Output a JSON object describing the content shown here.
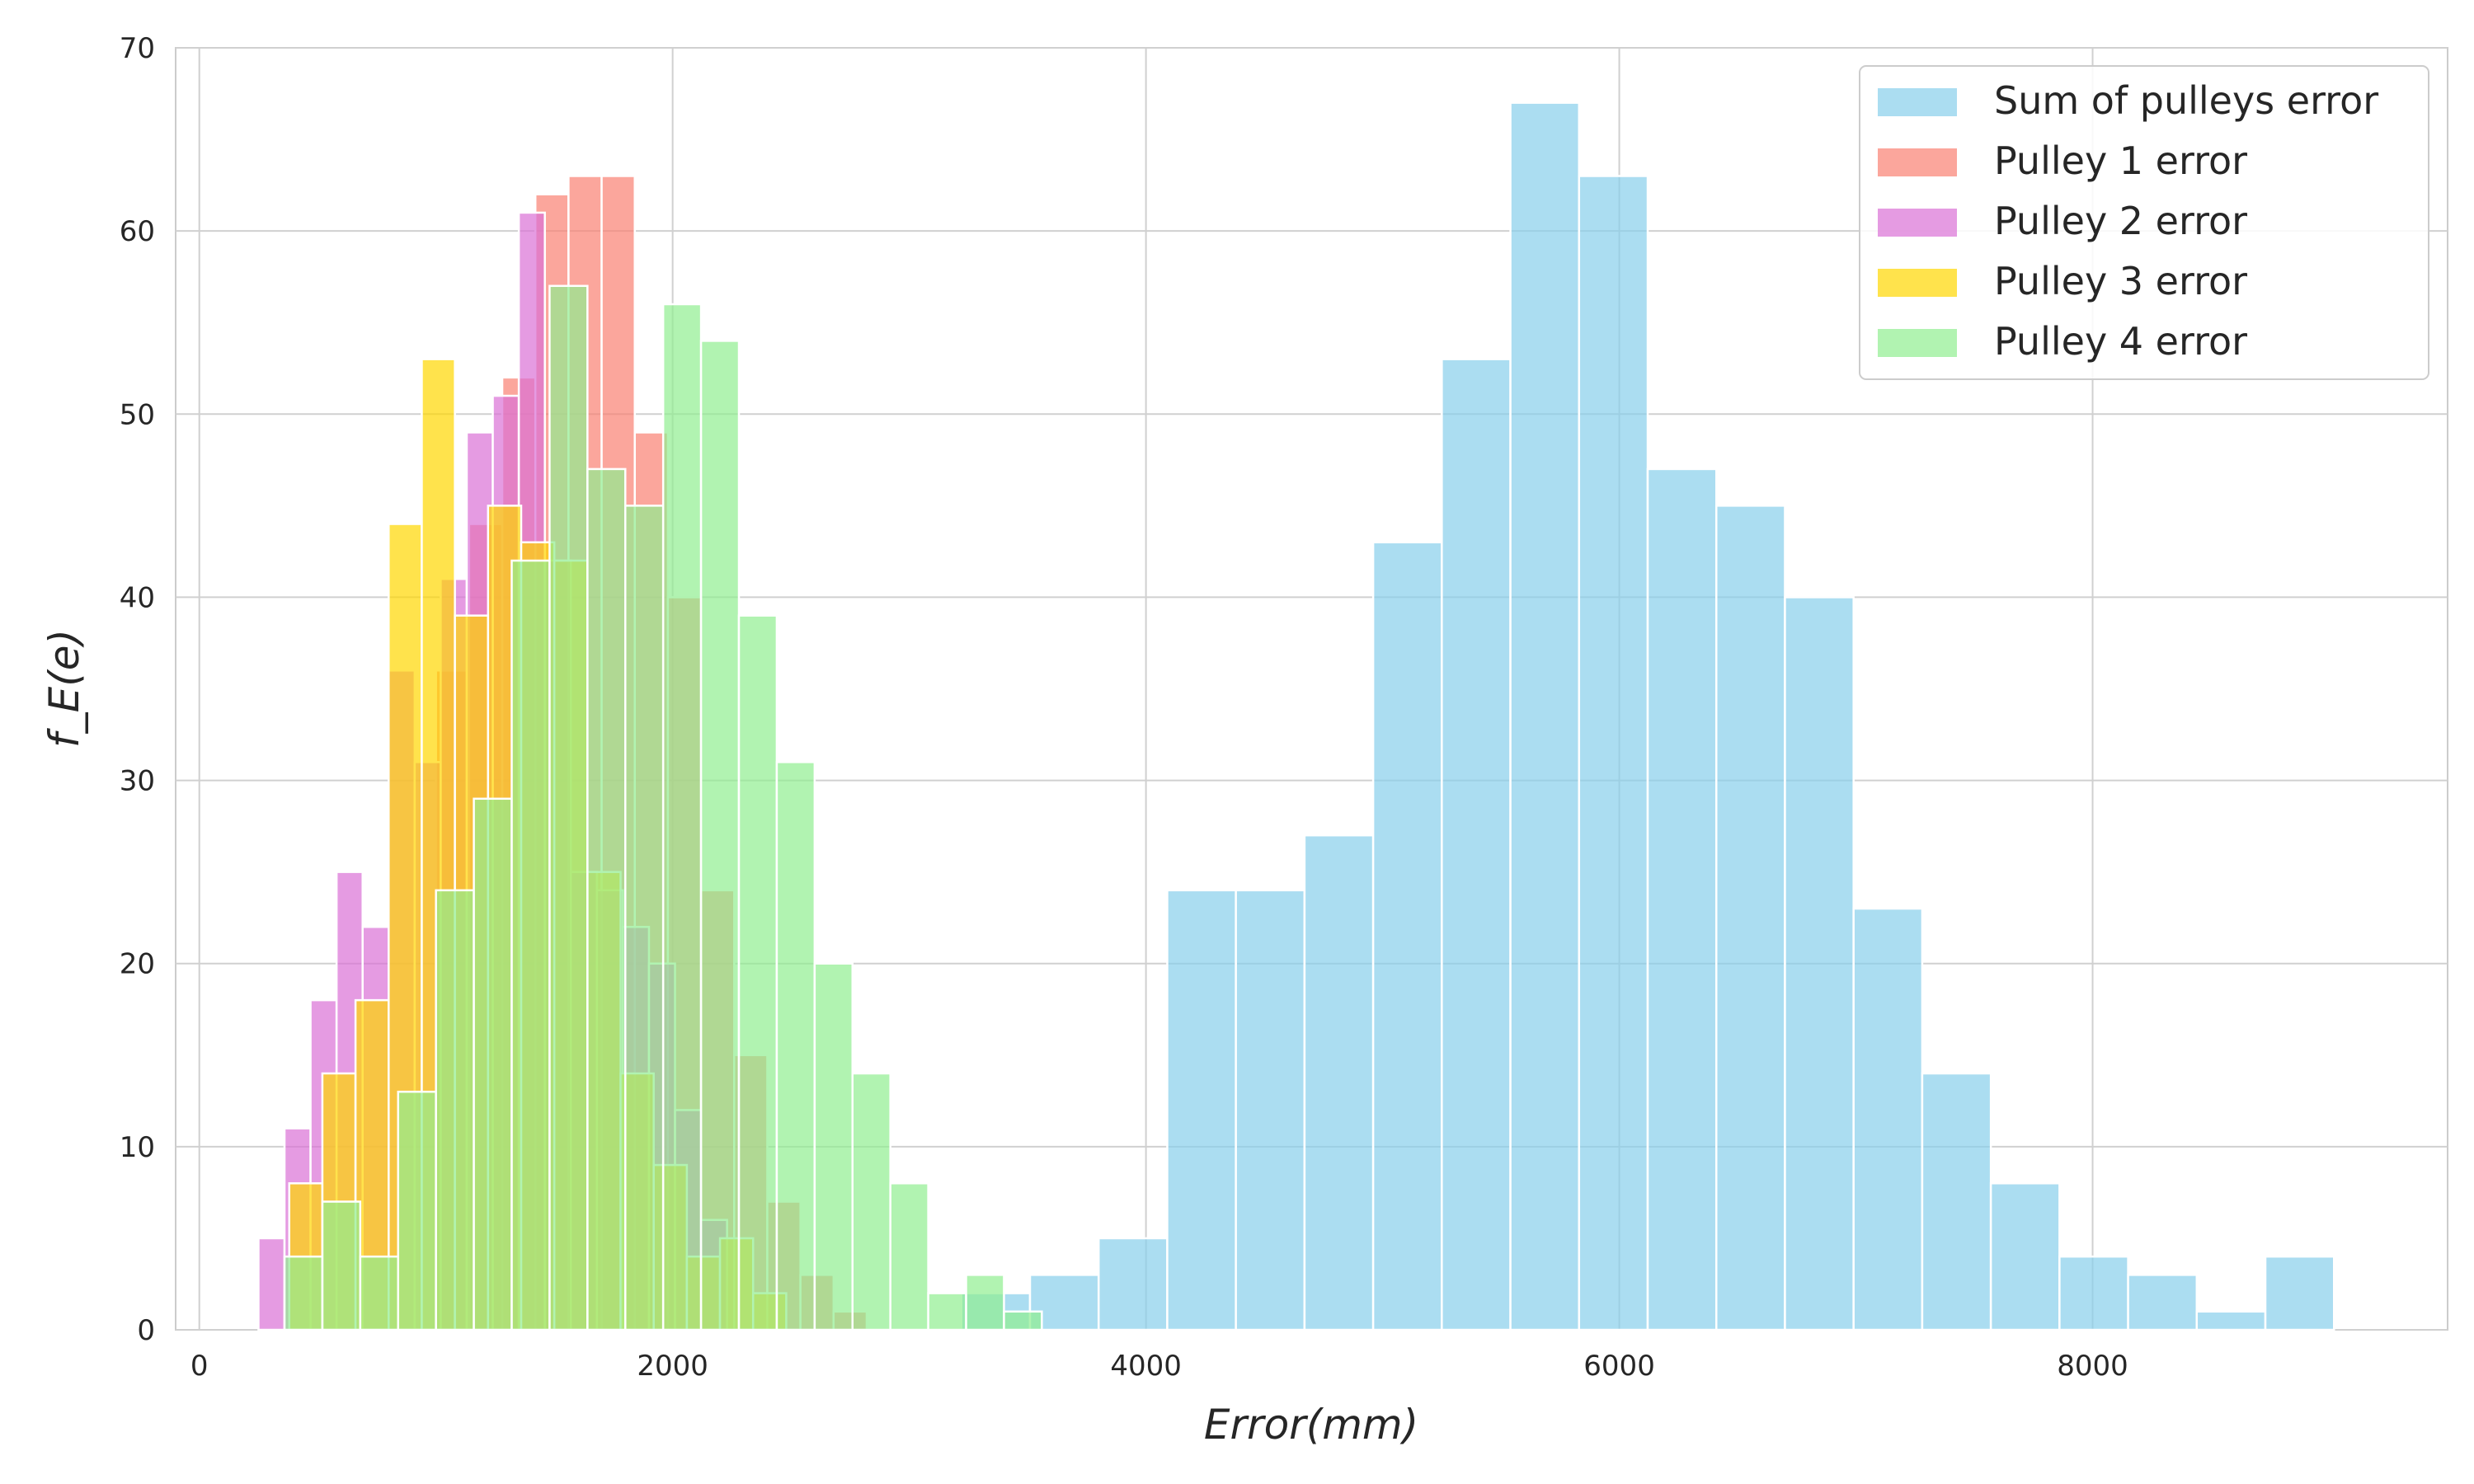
{
  "chart_data": {
    "type": "bar",
    "subtype": "overlapping-histogram",
    "title": "",
    "xlabel": "Error(mm)",
    "ylabel": "f_E(e)",
    "xlim": [
      -100,
      9500
    ],
    "ylim": [
      0,
      70
    ],
    "x_ticks": [
      0,
      2000,
      4000,
      6000,
      8000
    ],
    "y_ticks": [
      0,
      10,
      20,
      30,
      40,
      50,
      60,
      70
    ],
    "grid": true,
    "legend_position": "top-right",
    "series": [
      {
        "name": "Sum of pulleys error",
        "color": "#87ceeb",
        "opacity": 0.7,
        "bin_edges": [
          3220,
          3510,
          3800,
          4090,
          4380,
          4670,
          4960,
          5250,
          5540,
          5830,
          6120,
          6410,
          6700,
          6990,
          7280,
          7570,
          7860,
          8150,
          8440,
          8730,
          9020
        ],
        "counts": [
          2,
          3,
          5,
          24,
          24,
          27,
          43,
          53,
          67,
          63,
          47,
          45,
          40,
          23,
          14,
          8,
          4,
          3,
          1,
          4
        ]
      },
      {
        "name": "Pulley 1 error",
        "color": "#fa8072",
        "opacity": 0.7,
        "bin_edges": [
          1000,
          1140,
          1280,
          1420,
          1560,
          1700,
          1840,
          1980,
          2120,
          2260,
          2400,
          2540,
          2680,
          2820
        ],
        "counts": [
          36,
          44,
          52,
          62,
          63,
          63,
          49,
          40,
          24,
          15,
          7,
          3,
          1
        ]
      },
      {
        "name": "Pulley 2 error",
        "color": "#da70d6",
        "opacity": 0.7,
        "bin_edges": [
          250,
          360,
          470,
          580,
          690,
          800,
          910,
          1020,
          1130,
          1240,
          1350,
          1460,
          1570,
          1680,
          1790,
          1900,
          2010,
          2120,
          2230
        ],
        "counts": [
          5,
          11,
          18,
          25,
          22,
          36,
          31,
          41,
          49,
          51,
          61,
          42,
          25,
          24,
          22,
          20,
          12,
          6
        ]
      },
      {
        "name": "Pulley 3 error",
        "color": "#ffd700",
        "opacity": 0.7,
        "bin_edges": [
          380,
          520,
          660,
          800,
          940,
          1080,
          1220,
          1360,
          1500,
          1640,
          1780,
          1920,
          2060,
          2200,
          2340,
          2480
        ],
        "counts": [
          8,
          14,
          18,
          44,
          53,
          39,
          45,
          43,
          42,
          25,
          14,
          9,
          4,
          5,
          2
        ]
      },
      {
        "name": "Pulley 4 error",
        "color": "#90ee90",
        "opacity": 0.7,
        "bin_edges": [
          360,
          520,
          680,
          840,
          1000,
          1160,
          1320,
          1480,
          1640,
          1800,
          1960,
          2120,
          2280,
          2440,
          2600,
          2760,
          2920,
          3080,
          3240,
          3400,
          3560
        ],
        "counts": [
          4,
          7,
          4,
          13,
          24,
          29,
          42,
          57,
          47,
          45,
          56,
          54,
          39,
          31,
          20,
          14,
          8,
          2,
          3,
          1
        ]
      }
    ]
  }
}
